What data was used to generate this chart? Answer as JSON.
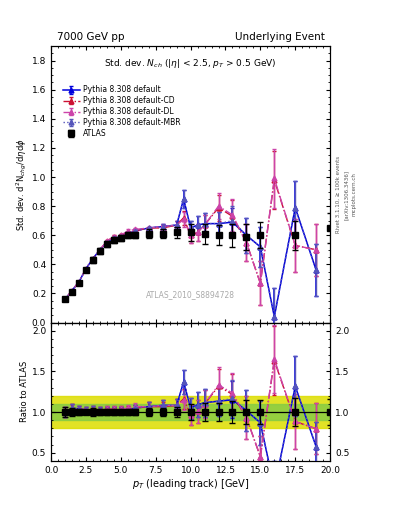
{
  "title_left": "7000 GeV pp",
  "title_right": "Underlying Event",
  "plot_label": "Std. dev. $N_{ch}$ ($|\\eta|$ < 2.5, $p_T$ > 0.5 GeV)",
  "watermark": "ATLAS_2010_S8894728",
  "ylabel_main": "Std. dev. d$^2$N$_{chg}$/d$\\eta$d$\\phi$",
  "ylabel_ratio": "Ratio to ATLAS",
  "xlabel": "$p_T$ (leading track) [GeV]",
  "right_label": "Rivet 3.1.10, ≥ 100k events",
  "arxiv_label": "[arXiv:1306.3436]",
  "mcplots_label": "mcplots.cern.ch",
  "xlim": [
    0,
    20
  ],
  "ylim_main": [
    0,
    1.9
  ],
  "ylim_ratio": [
    0.4,
    2.1
  ],
  "yticks_main": [
    0.0,
    0.2,
    0.4,
    0.6,
    0.8,
    1.0,
    1.2,
    1.4,
    1.6,
    1.8
  ],
  "yticks_ratio": [
    0.5,
    1.0,
    1.5,
    2.0
  ],
  "atlas_x": [
    1.0,
    1.5,
    2.0,
    2.5,
    3.0,
    3.5,
    4.0,
    4.5,
    5.0,
    5.5,
    6.0,
    7.0,
    8.0,
    9.0,
    10.0,
    11.0,
    12.0,
    13.0,
    14.0,
    15.0,
    17.5,
    20.0
  ],
  "atlas_y": [
    0.16,
    0.21,
    0.27,
    0.36,
    0.43,
    0.49,
    0.54,
    0.57,
    0.58,
    0.6,
    0.6,
    0.61,
    0.61,
    0.62,
    0.62,
    0.61,
    0.6,
    0.6,
    0.59,
    0.6,
    0.6,
    0.65
  ],
  "atlas_yerr": [
    0.01,
    0.01,
    0.01,
    0.01,
    0.02,
    0.02,
    0.02,
    0.02,
    0.02,
    0.02,
    0.02,
    0.03,
    0.03,
    0.04,
    0.06,
    0.07,
    0.07,
    0.08,
    0.09,
    0.09,
    0.1,
    0.1
  ],
  "py_def_x": [
    1.0,
    1.5,
    2.0,
    2.5,
    3.0,
    3.5,
    4.0,
    4.5,
    5.0,
    5.5,
    6.0,
    7.0,
    8.0,
    9.0,
    9.5,
    10.0,
    10.5,
    11.0,
    12.0,
    13.0,
    14.0,
    15.0,
    16.0,
    17.5,
    19.0
  ],
  "py_def_y": [
    0.16,
    0.22,
    0.28,
    0.37,
    0.44,
    0.5,
    0.55,
    0.58,
    0.59,
    0.61,
    0.63,
    0.65,
    0.66,
    0.67,
    0.85,
    0.65,
    0.67,
    0.68,
    0.68,
    0.69,
    0.6,
    0.52,
    0.04,
    0.79,
    0.36
  ],
  "py_def_yerr": [
    0.0,
    0.0,
    0.0,
    0.0,
    0.0,
    0.0,
    0.01,
    0.01,
    0.01,
    0.01,
    0.01,
    0.01,
    0.02,
    0.03,
    0.06,
    0.05,
    0.06,
    0.07,
    0.08,
    0.1,
    0.12,
    0.14,
    0.2,
    0.18,
    0.18
  ],
  "py_cd_x": [
    1.0,
    1.5,
    2.0,
    2.5,
    3.0,
    3.5,
    4.0,
    4.5,
    5.0,
    5.5,
    6.0,
    7.0,
    8.0,
    9.0,
    9.5,
    10.0,
    10.5,
    11.0,
    12.0,
    13.0,
    14.0,
    15.0,
    16.0,
    17.5,
    19.0
  ],
  "py_cd_y": [
    0.16,
    0.22,
    0.28,
    0.37,
    0.44,
    0.5,
    0.56,
    0.59,
    0.6,
    0.62,
    0.63,
    0.65,
    0.65,
    0.67,
    0.72,
    0.6,
    0.62,
    0.67,
    0.79,
    0.73,
    0.55,
    0.27,
    0.98,
    0.53,
    0.5
  ],
  "py_cd_yerr": [
    0.0,
    0.0,
    0.0,
    0.0,
    0.0,
    0.0,
    0.01,
    0.01,
    0.01,
    0.01,
    0.01,
    0.01,
    0.02,
    0.03,
    0.05,
    0.05,
    0.06,
    0.07,
    0.09,
    0.11,
    0.13,
    0.15,
    0.2,
    0.18,
    0.18
  ],
  "py_dl_x": [
    1.0,
    1.5,
    2.0,
    2.5,
    3.0,
    3.5,
    4.0,
    4.5,
    5.0,
    5.5,
    6.0,
    7.0,
    8.0,
    9.0,
    9.5,
    10.0,
    10.5,
    11.0,
    12.0,
    13.0,
    14.0,
    15.0,
    16.0,
    17.5,
    19.0
  ],
  "py_dl_y": [
    0.16,
    0.22,
    0.28,
    0.37,
    0.44,
    0.5,
    0.56,
    0.59,
    0.6,
    0.63,
    0.64,
    0.65,
    0.66,
    0.67,
    0.71,
    0.6,
    0.62,
    0.67,
    0.8,
    0.74,
    0.55,
    0.27,
    0.99,
    0.53,
    0.5
  ],
  "py_dl_yerr": [
    0.0,
    0.0,
    0.0,
    0.0,
    0.0,
    0.0,
    0.01,
    0.01,
    0.01,
    0.01,
    0.01,
    0.01,
    0.02,
    0.03,
    0.05,
    0.05,
    0.06,
    0.07,
    0.09,
    0.11,
    0.13,
    0.15,
    0.2,
    0.18,
    0.18
  ],
  "py_mbr_x": [
    1.0,
    1.5,
    2.0,
    2.5,
    3.0,
    3.5,
    4.0,
    4.5,
    5.0,
    5.5,
    6.0,
    7.0,
    8.0,
    9.0,
    9.5,
    10.0,
    10.5,
    11.0,
    12.0,
    13.0,
    14.0,
    15.0,
    16.0,
    17.5,
    19.0
  ],
  "py_mbr_y": [
    0.16,
    0.22,
    0.28,
    0.37,
    0.44,
    0.5,
    0.55,
    0.58,
    0.59,
    0.61,
    0.63,
    0.65,
    0.66,
    0.67,
    0.85,
    0.65,
    0.67,
    0.68,
    0.68,
    0.7,
    0.6,
    0.52,
    0.04,
    0.79,
    0.36
  ],
  "py_mbr_yerr": [
    0.0,
    0.0,
    0.0,
    0.0,
    0.0,
    0.0,
    0.01,
    0.01,
    0.01,
    0.01,
    0.01,
    0.01,
    0.02,
    0.03,
    0.06,
    0.05,
    0.06,
    0.07,
    0.08,
    0.1,
    0.12,
    0.14,
    0.2,
    0.18,
    0.18
  ],
  "col_atlas": "#000000",
  "col_def": "#0000dd",
  "col_cd": "#cc1133",
  "col_dl": "#cc44aa",
  "col_mbr": "#5555bb",
  "band_green": "#88cc44",
  "band_yellow": "#dddd00",
  "legend_labels": [
    "ATLAS",
    "Pythia 8.308 default",
    "Pythia 8.308 default-CD",
    "Pythia 8.308 default-DL",
    "Pythia 8.308 default-MBR"
  ]
}
